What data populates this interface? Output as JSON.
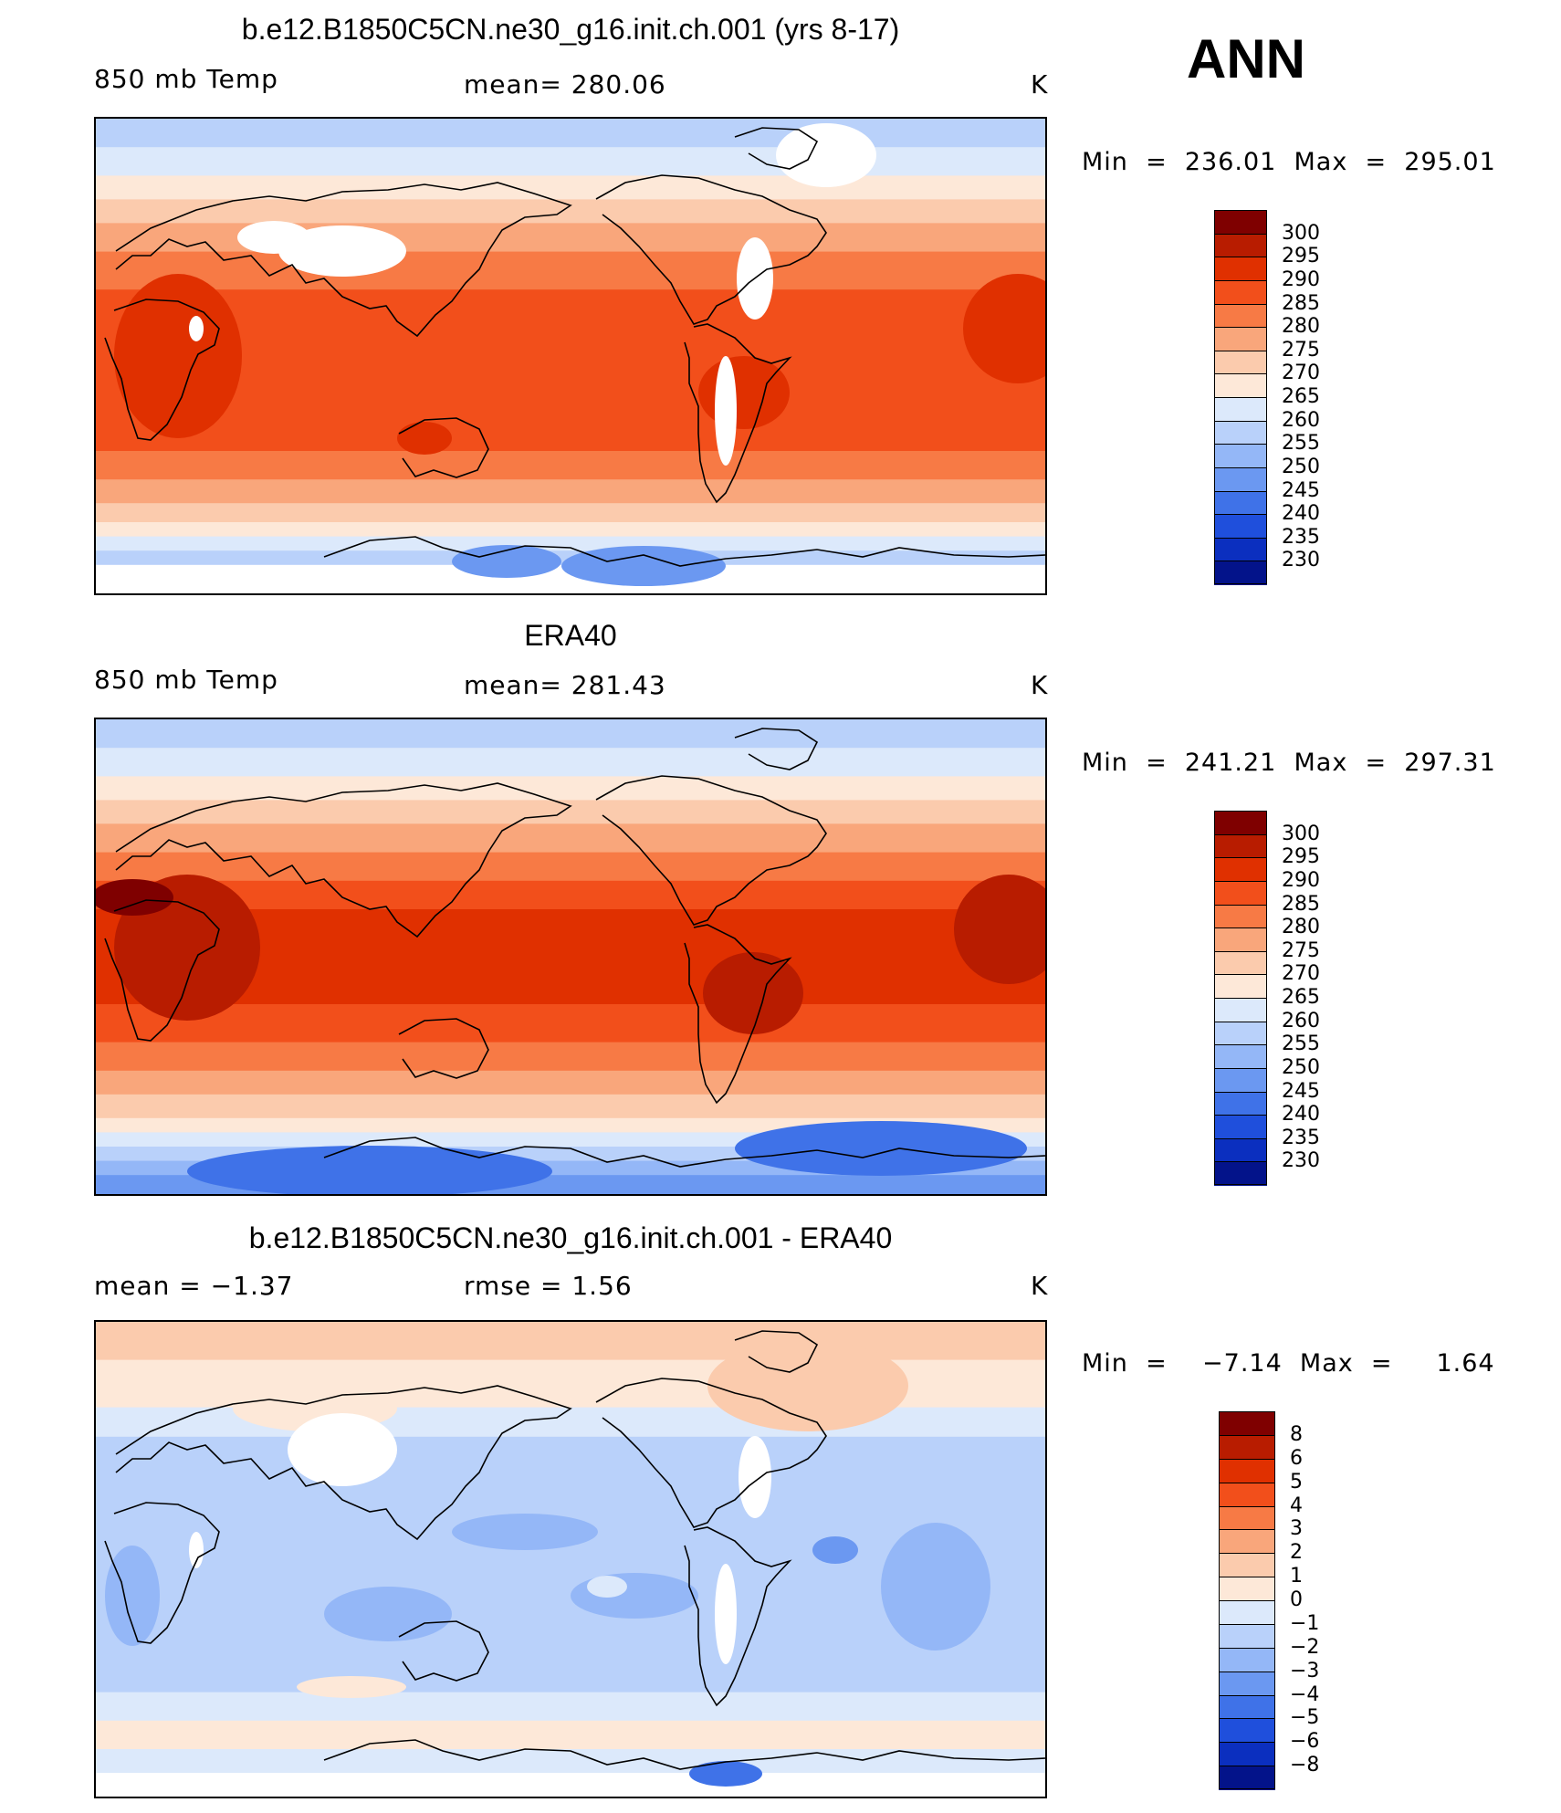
{
  "panels": [
    {
      "title": "b.e12.B1850C5CN.ne30_g16.init.ch.001 (yrs 8-17)",
      "left_label": "850 mb Temp",
      "center_label": "mean=  280.06",
      "units": "K",
      "minmax": "Min  =  236.01  Max  =  295.01",
      "colorbar_labels": [
        "300",
        "295",
        "290",
        "285",
        "280",
        "275",
        "270",
        "265",
        "260",
        "255",
        "250",
        "245",
        "240",
        "235",
        "230"
      ]
    },
    {
      "title": "ERA40",
      "left_label": "850 mb Temp",
      "center_label": "mean=  281.43",
      "units": "K",
      "minmax": "Min  =  241.21  Max  =  297.31",
      "colorbar_labels": [
        "300",
        "295",
        "290",
        "285",
        "280",
        "275",
        "270",
        "265",
        "260",
        "255",
        "250",
        "245",
        "240",
        "235",
        "230"
      ]
    },
    {
      "title": "b.e12.B1850C5CN.ne30_g16.init.ch.001 - ERA40",
      "left_label": "mean  =    −1.37",
      "center_label": "rmse  =     1.56",
      "units": "K",
      "minmax": "Min  =    −7.14  Max  =     1.64",
      "colorbar_labels": [
        "8",
        "6",
        "5",
        "4",
        "3",
        "2",
        "1",
        "0",
        "−1",
        "−2",
        "−3",
        "−4",
        "−5",
        "−6",
        "−8"
      ]
    }
  ],
  "season": "ANN",
  "colors": {
    "temp_scale": [
      "#7f0000",
      "#b81c00",
      "#e03000",
      "#f24f1b",
      "#f77a45",
      "#f9a67b",
      "#fbcbad",
      "#fde8d8",
      "#dce9fb",
      "#b9d1fa",
      "#94b7f7",
      "#6b98f1",
      "#3f72e8",
      "#1f4fdc",
      "#0b2fbf",
      "#03138a"
    ],
    "diff_scale": [
      "#7f0000",
      "#b81c00",
      "#e03000",
      "#f24f1b",
      "#f77a45",
      "#f9a67b",
      "#fbcbad",
      "#fde8d8",
      "#dce9fb",
      "#b9d1fa",
      "#94b7f7",
      "#6b98f1",
      "#3f72e8",
      "#1f4fdc",
      "#0b2fbf",
      "#03138a"
    ]
  }
}
